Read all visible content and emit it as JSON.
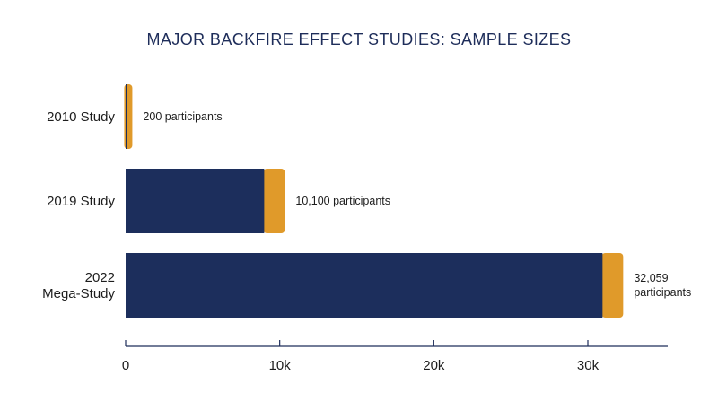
{
  "chart_data": {
    "type": "bar",
    "orientation": "horizontal",
    "title": "MAJOR BACKFIRE EFFECT STUDIES: SAMPLE SIZES",
    "xlabel": "",
    "ylabel": "",
    "categories": [
      [
        "2010 Study"
      ],
      [
        "2019 Study"
      ],
      [
        "2022",
        "Mega-Study"
      ]
    ],
    "values": [
      200,
      10100,
      32059
    ],
    "data_labels": [
      [
        "200 participants"
      ],
      [
        "10,100 participants"
      ],
      [
        "32,059",
        "participants"
      ]
    ],
    "xlim": [
      0,
      35000
    ],
    "xticks": [
      0,
      10000,
      20000,
      30000
    ],
    "xtick_labels": [
      "0",
      "10k",
      "20k",
      "30k"
    ],
    "grid": false,
    "legend": "none",
    "colors": {
      "bar": "#1c2e5c",
      "accent": "#e09a2a",
      "axis": "#1e2d5a",
      "title": "#1e2d5a"
    }
  }
}
